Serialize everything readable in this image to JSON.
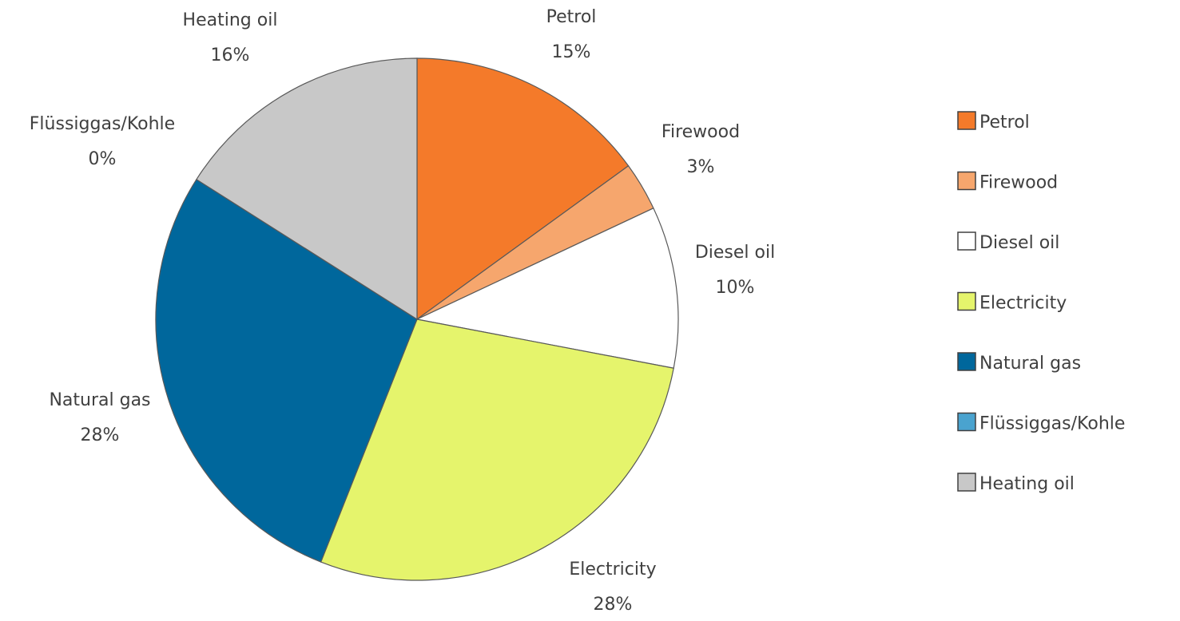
{
  "chart_data": {
    "type": "pie",
    "title": "",
    "legend_position": "right",
    "slices": [
      {
        "label": "Petrol",
        "value": 15,
        "value_label": "15%",
        "color": "#f47a2a"
      },
      {
        "label": "Firewood",
        "value": 3,
        "value_label": "3%",
        "color": "#f6a66d"
      },
      {
        "label": "Diesel oil",
        "value": 10,
        "value_label": "10%",
        "color": "#ffffff"
      },
      {
        "label": "Electricity",
        "value": 28,
        "value_label": "28%",
        "color": "#e5f46c"
      },
      {
        "label": "Natural gas",
        "value": 28,
        "value_label": "28%",
        "color": "#00679c"
      },
      {
        "label": "Flüssiggas/Kohle",
        "value": 0,
        "value_label": "0%",
        "color": "#4aa3cf"
      },
      {
        "label": "Heating oil",
        "value": 16,
        "value_label": "16%",
        "color": "#c8c8c8"
      }
    ]
  }
}
